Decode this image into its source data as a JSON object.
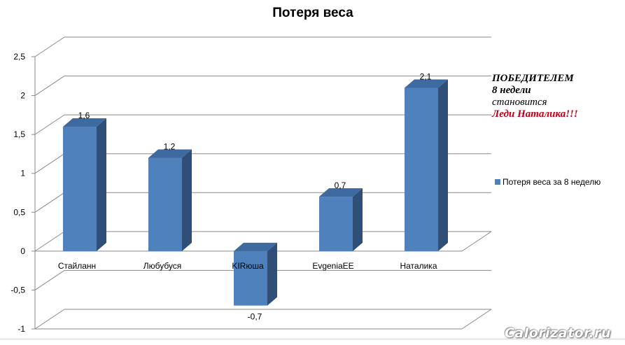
{
  "chart_data": {
    "type": "bar",
    "title": "Потеря веса",
    "categories": [
      "Стайланн",
      "Любубуся",
      "KIRюша",
      "EvgeniaEE",
      "Наталика"
    ],
    "series": [
      {
        "name": "Потеря веса за 8 неделю",
        "values": [
          1.6,
          1.2,
          -0.7,
          0.7,
          2.1
        ],
        "labels": [
          "1,6",
          "1,2",
          "-0,7",
          "0,7",
          "2,1"
        ],
        "color": "#4f81bd"
      }
    ],
    "ylim": [
      -1,
      2.5
    ],
    "yticks": [
      {
        "value": 2.5,
        "label": "2,5"
      },
      {
        "value": 2,
        "label": "2"
      },
      {
        "value": 1.5,
        "label": "1,5"
      },
      {
        "value": 1,
        "label": "1"
      },
      {
        "value": 0.5,
        "label": "0,5"
      },
      {
        "value": 0,
        "label": "0"
      },
      {
        "value": -0.5,
        "label": "-0,5"
      },
      {
        "value": -1,
        "label": "-1"
      }
    ],
    "xlabel": "",
    "ylabel": "",
    "grid": true,
    "style": "3d-column",
    "legend_position": "right"
  },
  "annotation": {
    "line1": "ПОБЕДИТЕЛЕМ",
    "line2": "8 недели",
    "line3": "становится",
    "line4": "Леди Наталика!!!"
  },
  "watermark": "Calorizator.ru",
  "colors": {
    "bar_front": "#4f81bd",
    "bar_side": "#2f4f79",
    "bar_top": "#3e6aa0",
    "annotation_red": "#c0001a"
  }
}
